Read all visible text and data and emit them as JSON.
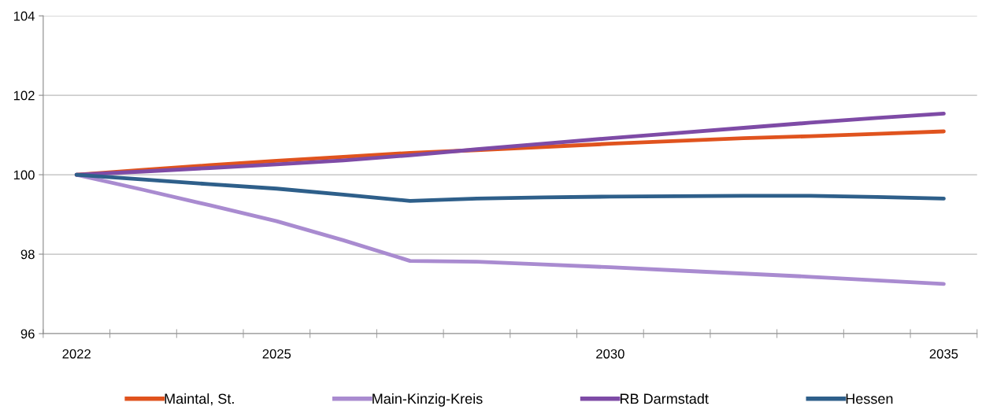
{
  "chart_data": {
    "type": "line",
    "categories": [
      "2022",
      null,
      null,
      "2025",
      null,
      null,
      null,
      null,
      "2030",
      null,
      null,
      null,
      null,
      "2035"
    ],
    "series": [
      {
        "name": "Maintal, St.",
        "color": "#e0531e",
        "values": [
          100,
          100.12,
          100.24,
          100.35,
          100.45,
          100.55,
          100.62,
          100.7,
          100.78,
          100.85,
          100.92,
          100.97,
          101.03,
          101.09
        ]
      },
      {
        "name": "Main-Kinzig-Kreis",
        "color": "#a98bd0",
        "values": [
          100,
          99.62,
          99.23,
          98.83,
          98.35,
          97.83,
          97.81,
          97.74,
          97.67,
          97.59,
          97.51,
          97.43,
          97.34,
          97.25
        ]
      },
      {
        "name": "RB Darmstadt",
        "color": "#7e4ba6",
        "values": [
          100,
          100.08,
          100.17,
          100.26,
          100.36,
          100.49,
          100.64,
          100.78,
          100.92,
          101.05,
          101.18,
          101.31,
          101.43,
          101.54
        ]
      },
      {
        "name": "Hessen",
        "color": "#2e5f8a",
        "values": [
          100,
          99.88,
          99.76,
          99.65,
          99.5,
          99.34,
          99.4,
          99.43,
          99.45,
          99.46,
          99.47,
          99.47,
          99.44,
          99.4
        ]
      }
    ],
    "ylim": [
      96,
      104
    ],
    "yticks": [
      96,
      98,
      100,
      102,
      104
    ],
    "grid": "y",
    "legend": "bottom",
    "marker": "none",
    "line_style": "solid"
  }
}
